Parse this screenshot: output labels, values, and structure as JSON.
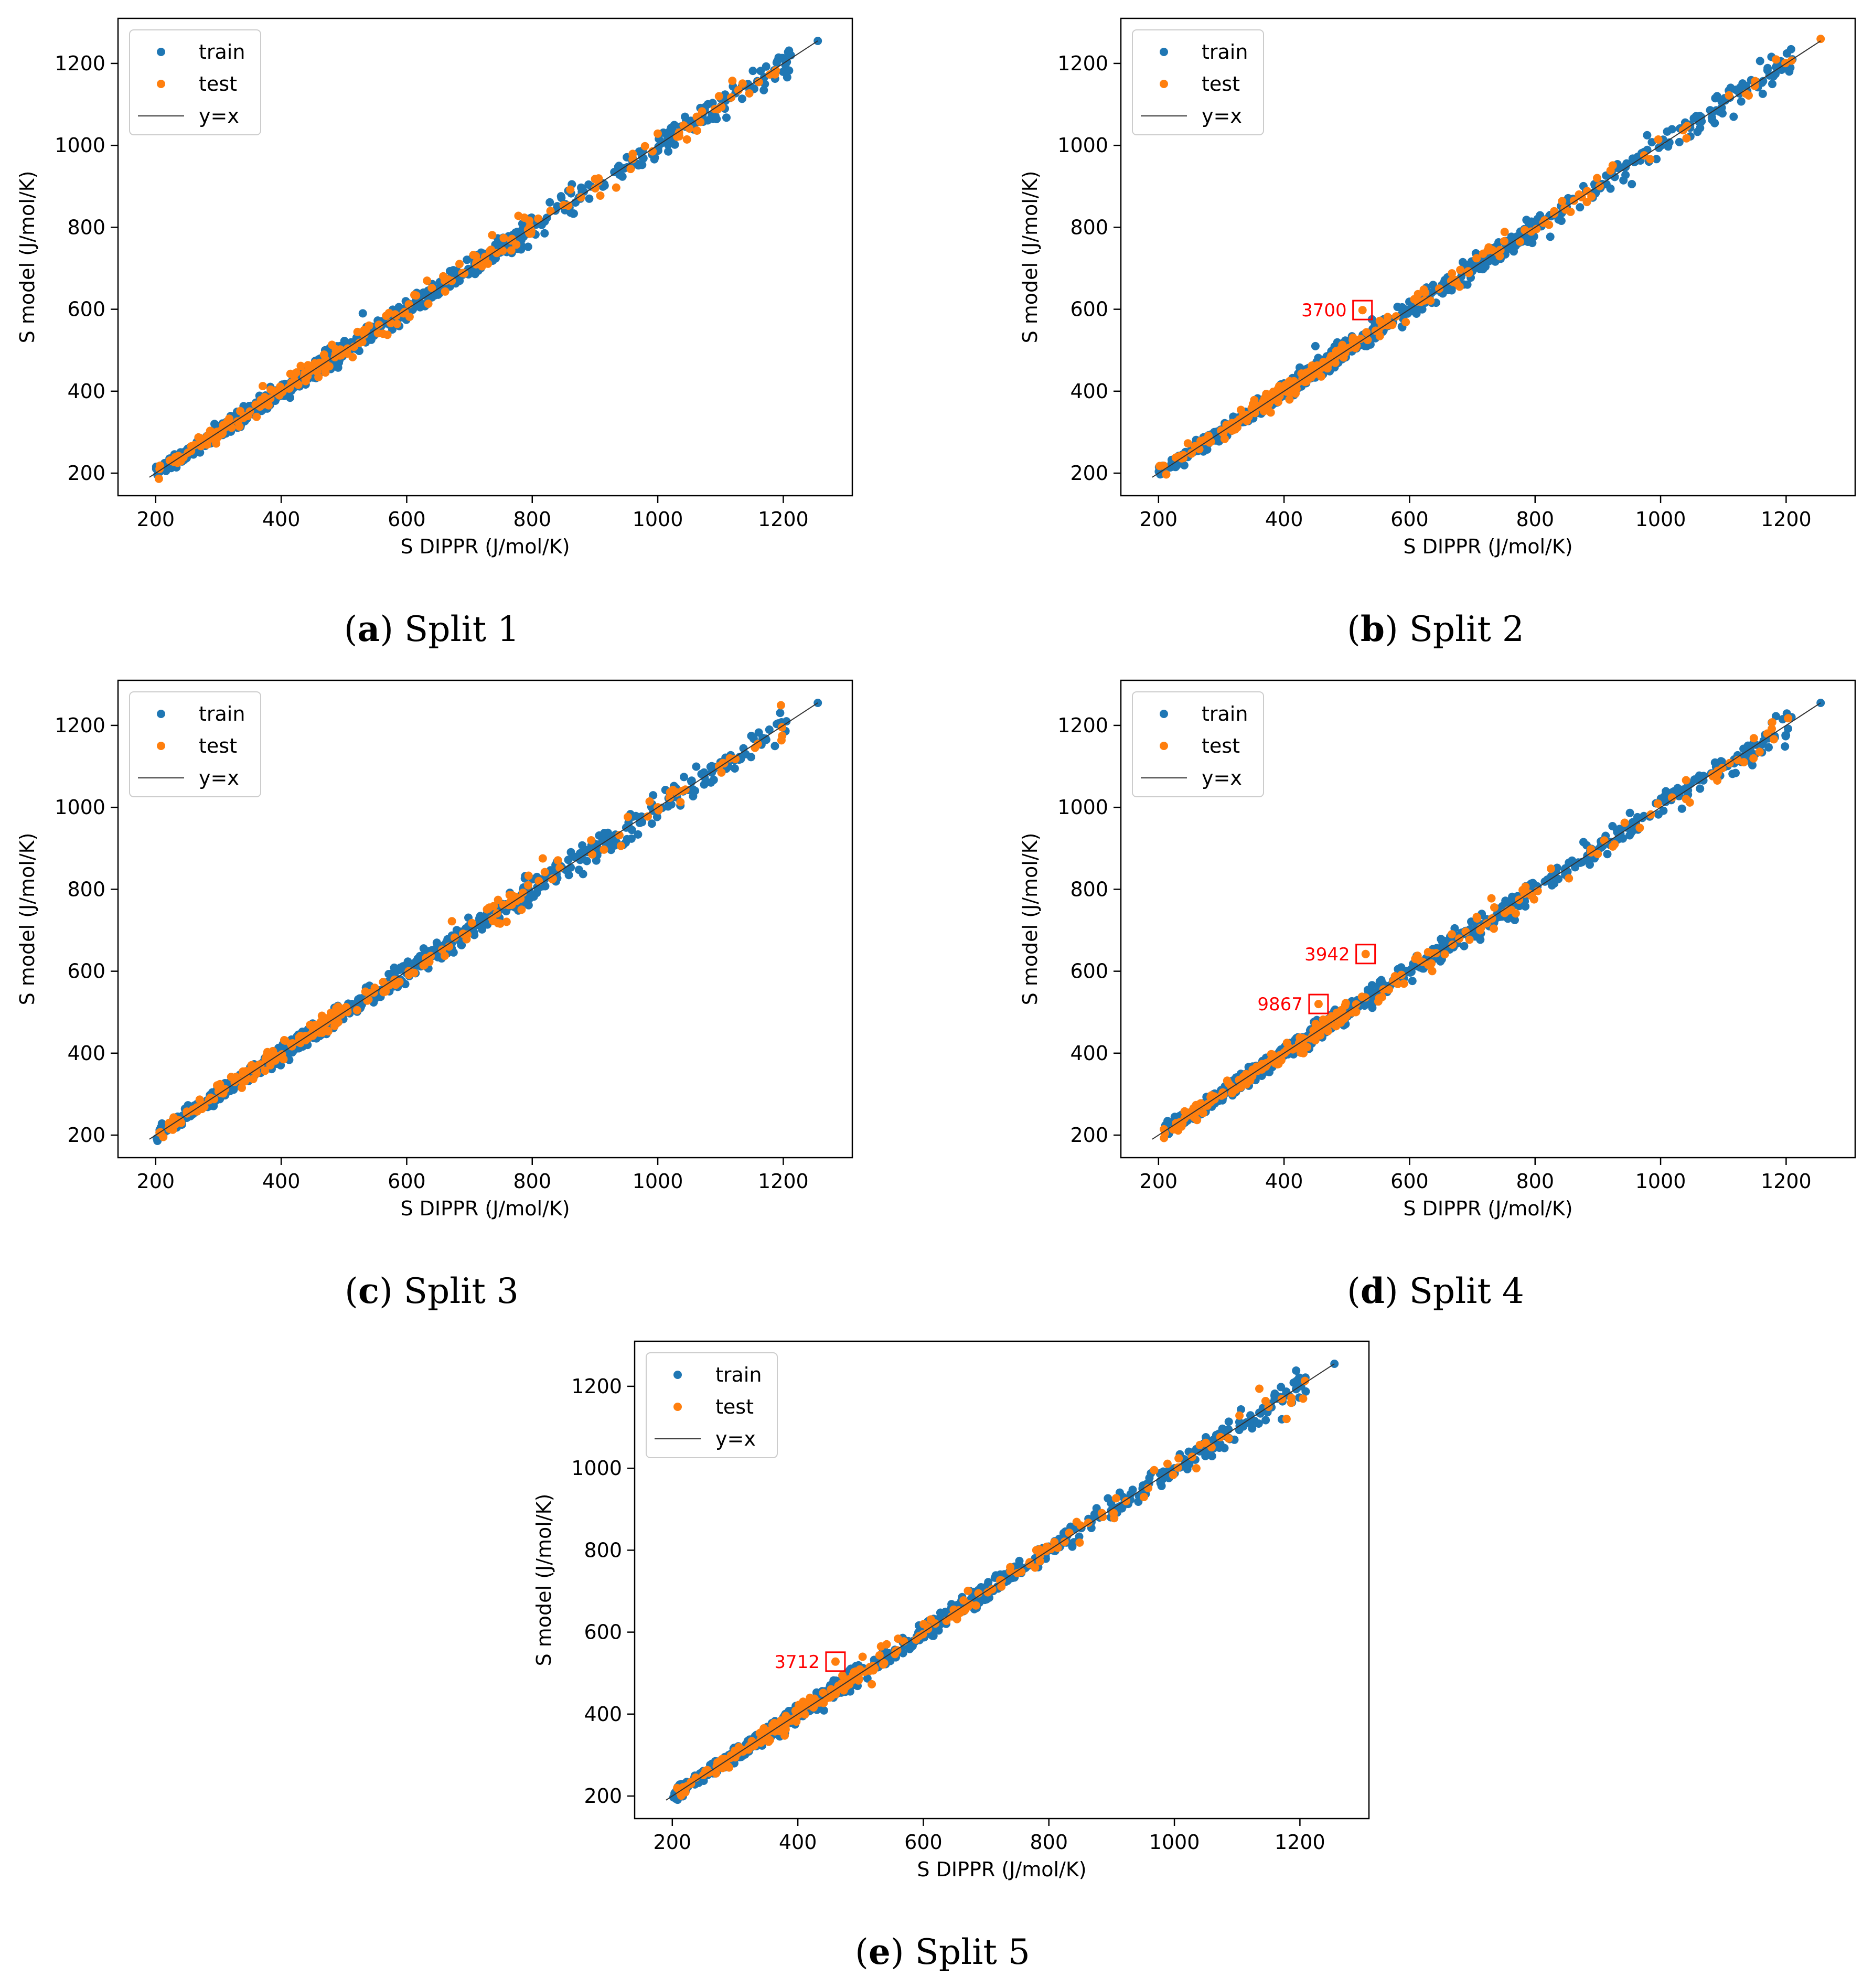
{
  "colors": {
    "train": "#1f77b4",
    "test": "#ff7f0e",
    "identity": "#333333",
    "annotation": "#ff0000"
  },
  "chart_data": [
    {
      "id": "a",
      "type": "scatter",
      "panel_letter": "a",
      "caption": "Split 1",
      "xlabel": "S DIPPR (J/mol/K)",
      "ylabel": "S model (J/mol/K)",
      "xlim": [
        140,
        1310
      ],
      "ylim": [
        145,
        1310
      ],
      "xticks": [
        200,
        400,
        600,
        800,
        1000,
        1200
      ],
      "yticks": [
        200,
        400,
        600,
        800,
        1000,
        1200
      ],
      "legend": {
        "position": "top-left",
        "entries": [
          "train",
          "test",
          "y=x"
        ]
      },
      "identity_line": {
        "from": 190,
        "to": 1255
      },
      "seed": 11,
      "test_extras": [
        [
          778,
          828
        ],
        [
          640,
          652
        ],
        [
          720,
          705
        ],
        [
          540,
          560
        ],
        [
          595,
          590
        ]
      ],
      "train_extras": [
        [
          1255,
          1255
        ],
        [
          1212,
          1220
        ],
        [
          530,
          590
        ],
        [
          1100,
          1115
        ],
        [
          470,
          500
        ]
      ],
      "annotations": []
    },
    {
      "id": "b",
      "type": "scatter",
      "panel_letter": "b",
      "caption": "Split 2",
      "xlabel": "S DIPPR (J/mol/K)",
      "ylabel": "S model (J/mol/K)",
      "xlim": [
        140,
        1310
      ],
      "ylim": [
        145,
        1310
      ],
      "xticks": [
        200,
        400,
        600,
        800,
        1000,
        1200
      ],
      "yticks": [
        200,
        400,
        600,
        800,
        1000,
        1200
      ],
      "legend": {
        "position": "top-left",
        "entries": [
          "train",
          "test",
          "y=x"
        ]
      },
      "identity_line": {
        "from": 190,
        "to": 1255
      },
      "seed": 23,
      "test_extras": [
        [
          525,
          598
        ],
        [
          1255,
          1260
        ],
        [
          870,
          880
        ],
        [
          1150,
          1145
        ]
      ],
      "train_extras": [
        [
          1210,
          1210
        ],
        [
          1090,
          1120
        ],
        [
          450,
          510
        ]
      ],
      "annotations": [
        {
          "label": "3700",
          "x": 525,
          "y": 598
        }
      ]
    },
    {
      "id": "c",
      "type": "scatter",
      "panel_letter": "c",
      "caption": "Split 3",
      "xlabel": "S DIPPR (J/mol/K)",
      "ylabel": "S model (J/mol/K)",
      "xlim": [
        140,
        1310
      ],
      "ylim": [
        145,
        1310
      ],
      "xticks": [
        200,
        400,
        600,
        800,
        1000,
        1200
      ],
      "yticks": [
        200,
        400,
        600,
        800,
        1000,
        1200
      ],
      "legend": {
        "position": "top-left",
        "entries": [
          "train",
          "test",
          "y=x"
        ]
      },
      "identity_line": {
        "from": 190,
        "to": 1255
      },
      "seed": 37,
      "test_extras": [
        [
          672,
          722
        ],
        [
          820,
          842
        ],
        [
          1000,
          1000
        ]
      ],
      "train_extras": [
        [
          1255,
          1255
        ],
        [
          1205,
          1210
        ],
        [
          1100,
          1110
        ]
      ],
      "annotations": []
    },
    {
      "id": "d",
      "type": "scatter",
      "panel_letter": "d",
      "caption": "Split 4",
      "xlabel": "S DIPPR (J/mol/K)",
      "ylabel": "S model (J/mol/K)",
      "xlim": [
        140,
        1310
      ],
      "ylim": [
        145,
        1310
      ],
      "xticks": [
        200,
        400,
        600,
        800,
        1000,
        1200
      ],
      "yticks": [
        200,
        400,
        600,
        800,
        1000,
        1200
      ],
      "legend": {
        "position": "top-left",
        "entries": [
          "train",
          "test",
          "y=x"
        ]
      },
      "identity_line": {
        "from": 190,
        "to": 1255
      },
      "seed": 53,
      "test_extras": [
        [
          530,
          642
        ],
        [
          455,
          520
        ],
        [
          1170,
          1180
        ],
        [
          1110,
          1108
        ]
      ],
      "train_extras": [
        [
          1255,
          1255
        ],
        [
          1203,
          1192
        ],
        [
          1060,
          1070
        ]
      ],
      "annotations": [
        {
          "label": "3942",
          "x": 530,
          "y": 642
        },
        {
          "label": "9867",
          "x": 455,
          "y": 520
        }
      ]
    },
    {
      "id": "e",
      "type": "scatter",
      "panel_letter": "e",
      "caption": "Split 5",
      "xlabel": "S DIPPR (J/mol/K)",
      "ylabel": "S model (J/mol/K)",
      "xlim": [
        140,
        1310
      ],
      "ylim": [
        145,
        1310
      ],
      "xticks": [
        200,
        400,
        600,
        800,
        1000,
        1200
      ],
      "yticks": [
        200,
        400,
        600,
        800,
        1000,
        1200
      ],
      "legend": {
        "position": "top-left",
        "entries": [
          "train",
          "test",
          "y=x"
        ]
      },
      "identity_line": {
        "from": 190,
        "to": 1255
      },
      "seed": 71,
      "test_extras": [
        [
          460,
          528
        ],
        [
          1205,
          1170
        ],
        [
          1150,
          1150
        ],
        [
          1050,
          1062
        ],
        [
          1035,
          1000
        ],
        [
          780,
          800
        ]
      ],
      "train_extras": [
        [
          1255,
          1255
        ],
        [
          1180,
          1178
        ],
        [
          1000,
          1000
        ]
      ],
      "annotations": [
        {
          "label": "3712",
          "x": 460,
          "y": 528
        }
      ]
    }
  ]
}
